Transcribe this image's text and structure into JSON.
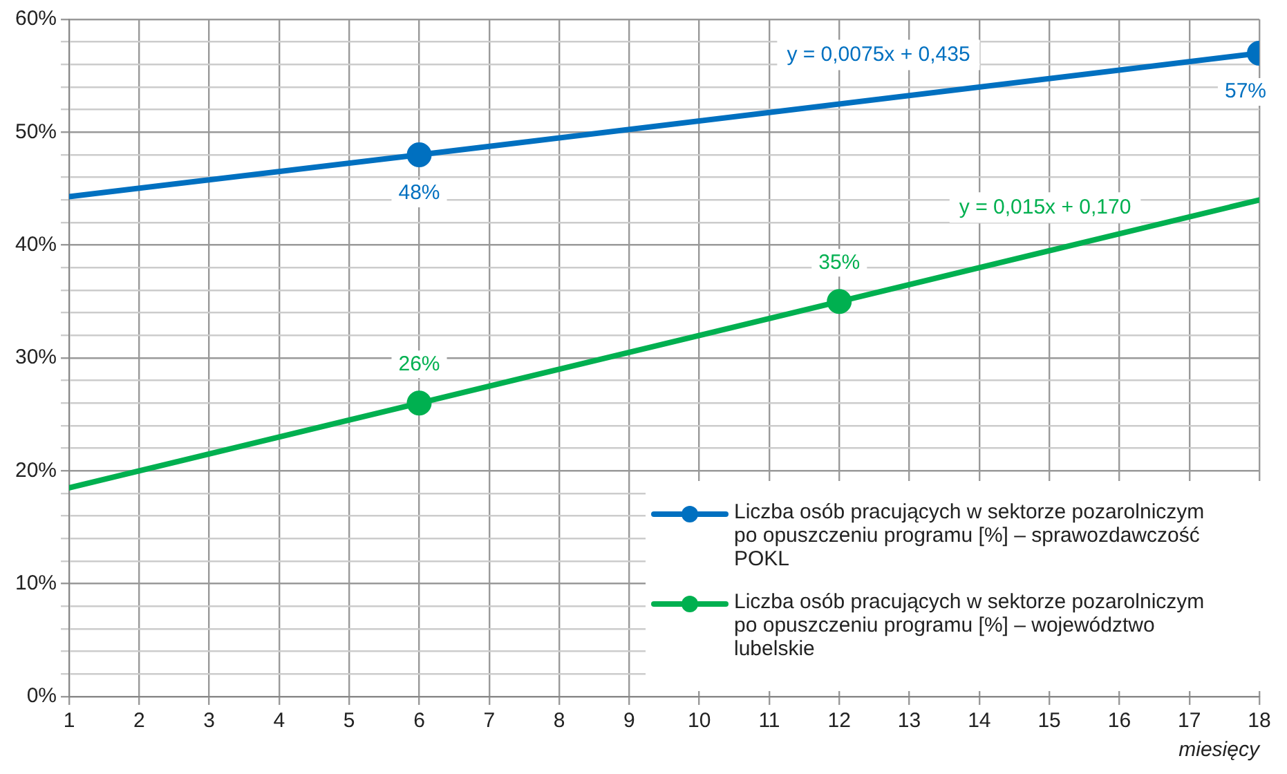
{
  "chart_data": {
    "type": "line",
    "xlabel": "miesięcy",
    "xlim": [
      1,
      18
    ],
    "xticks": [
      1,
      2,
      3,
      4,
      5,
      6,
      7,
      8,
      9,
      10,
      11,
      12,
      13,
      14,
      15,
      16,
      17,
      18
    ],
    "ylim": [
      0,
      60
    ],
    "yticks": [
      {
        "value": 0,
        "label": "0%"
      },
      {
        "value": 2,
        "label": null
      },
      {
        "value": 4,
        "label": null
      },
      {
        "value": 6,
        "label": null
      },
      {
        "value": 8,
        "label": null
      },
      {
        "value": 10,
        "label": "10%"
      },
      {
        "value": 12,
        "label": null
      },
      {
        "value": 14,
        "label": null
      },
      {
        "value": 16,
        "label": null
      },
      {
        "value": 18,
        "label": null
      },
      {
        "value": 20,
        "label": "20%"
      },
      {
        "value": 22,
        "label": null
      },
      {
        "value": 24,
        "label": null
      },
      {
        "value": 26,
        "label": null
      },
      {
        "value": 28,
        "label": null
      },
      {
        "value": 30,
        "label": "30%"
      },
      {
        "value": 32,
        "label": null
      },
      {
        "value": 34,
        "label": null
      },
      {
        "value": 36,
        "label": null
      },
      {
        "value": 38,
        "label": null
      },
      {
        "value": 40,
        "label": "40%"
      },
      {
        "value": 42,
        "label": null
      },
      {
        "value": 44,
        "label": null
      },
      {
        "value": 46,
        "label": null
      },
      {
        "value": 48,
        "label": null
      },
      {
        "value": 50,
        "label": "50%"
      },
      {
        "value": 52,
        "label": null
      },
      {
        "value": 54,
        "label": null
      },
      {
        "value": 56,
        "label": null
      },
      {
        "value": 58,
        "label": null
      },
      {
        "value": 60,
        "label": "60%"
      }
    ],
    "grid": true,
    "legend": "bottom right",
    "marker": "circle",
    "line_style": "solid",
    "series": [
      {
        "name": "Liczba osób pracujących w sektorze pozarolniczym po opuszczeniu programu [%] – sprawozdawczość POKL",
        "color": "#0070c0",
        "x": [
          1,
          6,
          18
        ],
        "values": [
          44.3,
          48,
          57
        ],
        "value_labels": [
          null,
          "48%",
          "57%"
        ]
      },
      {
        "name": "Liczba osób pracujących w sektorze pozarolniczym po opuszczeniu programu [%] – województwo lubelskie",
        "color": "#00b050",
        "x": [
          1,
          6,
          12,
          18
        ],
        "values": [
          18.5,
          26,
          35,
          44
        ],
        "value_labels": [
          null,
          "26%",
          "35%",
          null
        ]
      }
    ],
    "annotations": [
      "y = 0,0075x + 0,435",
      "y = 0,015x + 0,170"
    ]
  }
}
